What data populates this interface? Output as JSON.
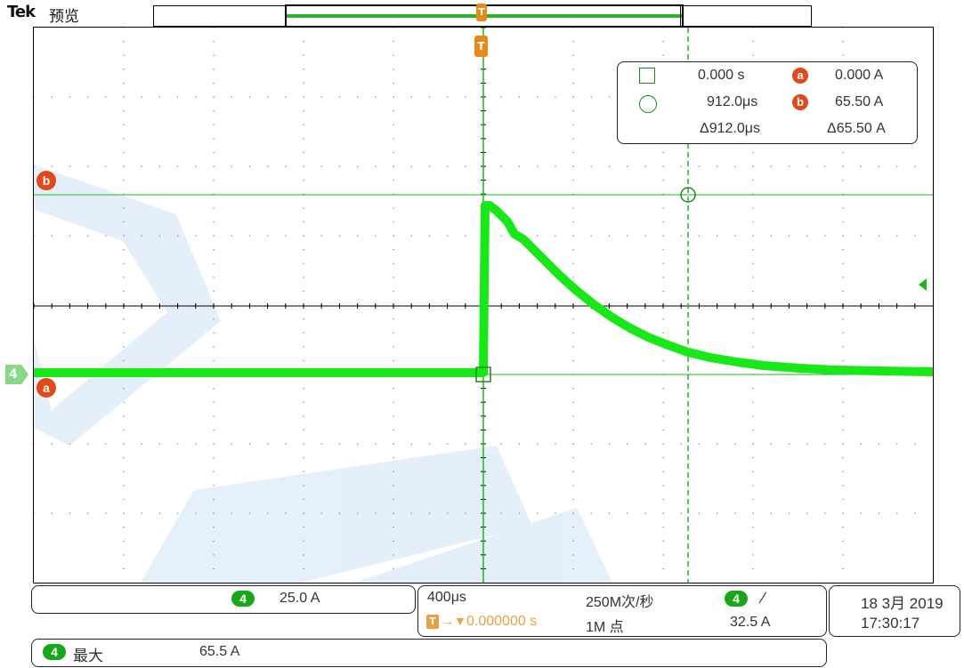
{
  "header": {
    "brand": "Tek",
    "mode": "预览",
    "trigger_marker": "T"
  },
  "channel_marker": "4",
  "cursors": {
    "a_label": "a",
    "b_label": "b",
    "readout": {
      "t1": "0.000 s",
      "v1": "0.000 A",
      "t2": "912.0μs",
      "v2": "65.50 A",
      "dt": "Δ912.0μs",
      "dv": "Δ65.50 A"
    }
  },
  "bottom_bar": {
    "ch_badge": "4",
    "scale": "25.0 A",
    "timebase": "400μs",
    "sample_rate": "250M次/秒",
    "trigger_ch": "4",
    "trigger_slope": "∕",
    "trigger_offset": "0.000000 s",
    "record_length": "1M 点",
    "trigger_level": "32.5 A",
    "date": "18 3月 2019",
    "time": "17:30:17",
    "meas_ch": "4",
    "meas_label": "最大",
    "meas_value": "65.5 A"
  },
  "colors": {
    "trace": "#18e818",
    "cursor": "#28b028",
    "marker_orange": "#e88a1a",
    "badge_red": "#e04a1a",
    "watermark": "#cfe3f5"
  }
}
